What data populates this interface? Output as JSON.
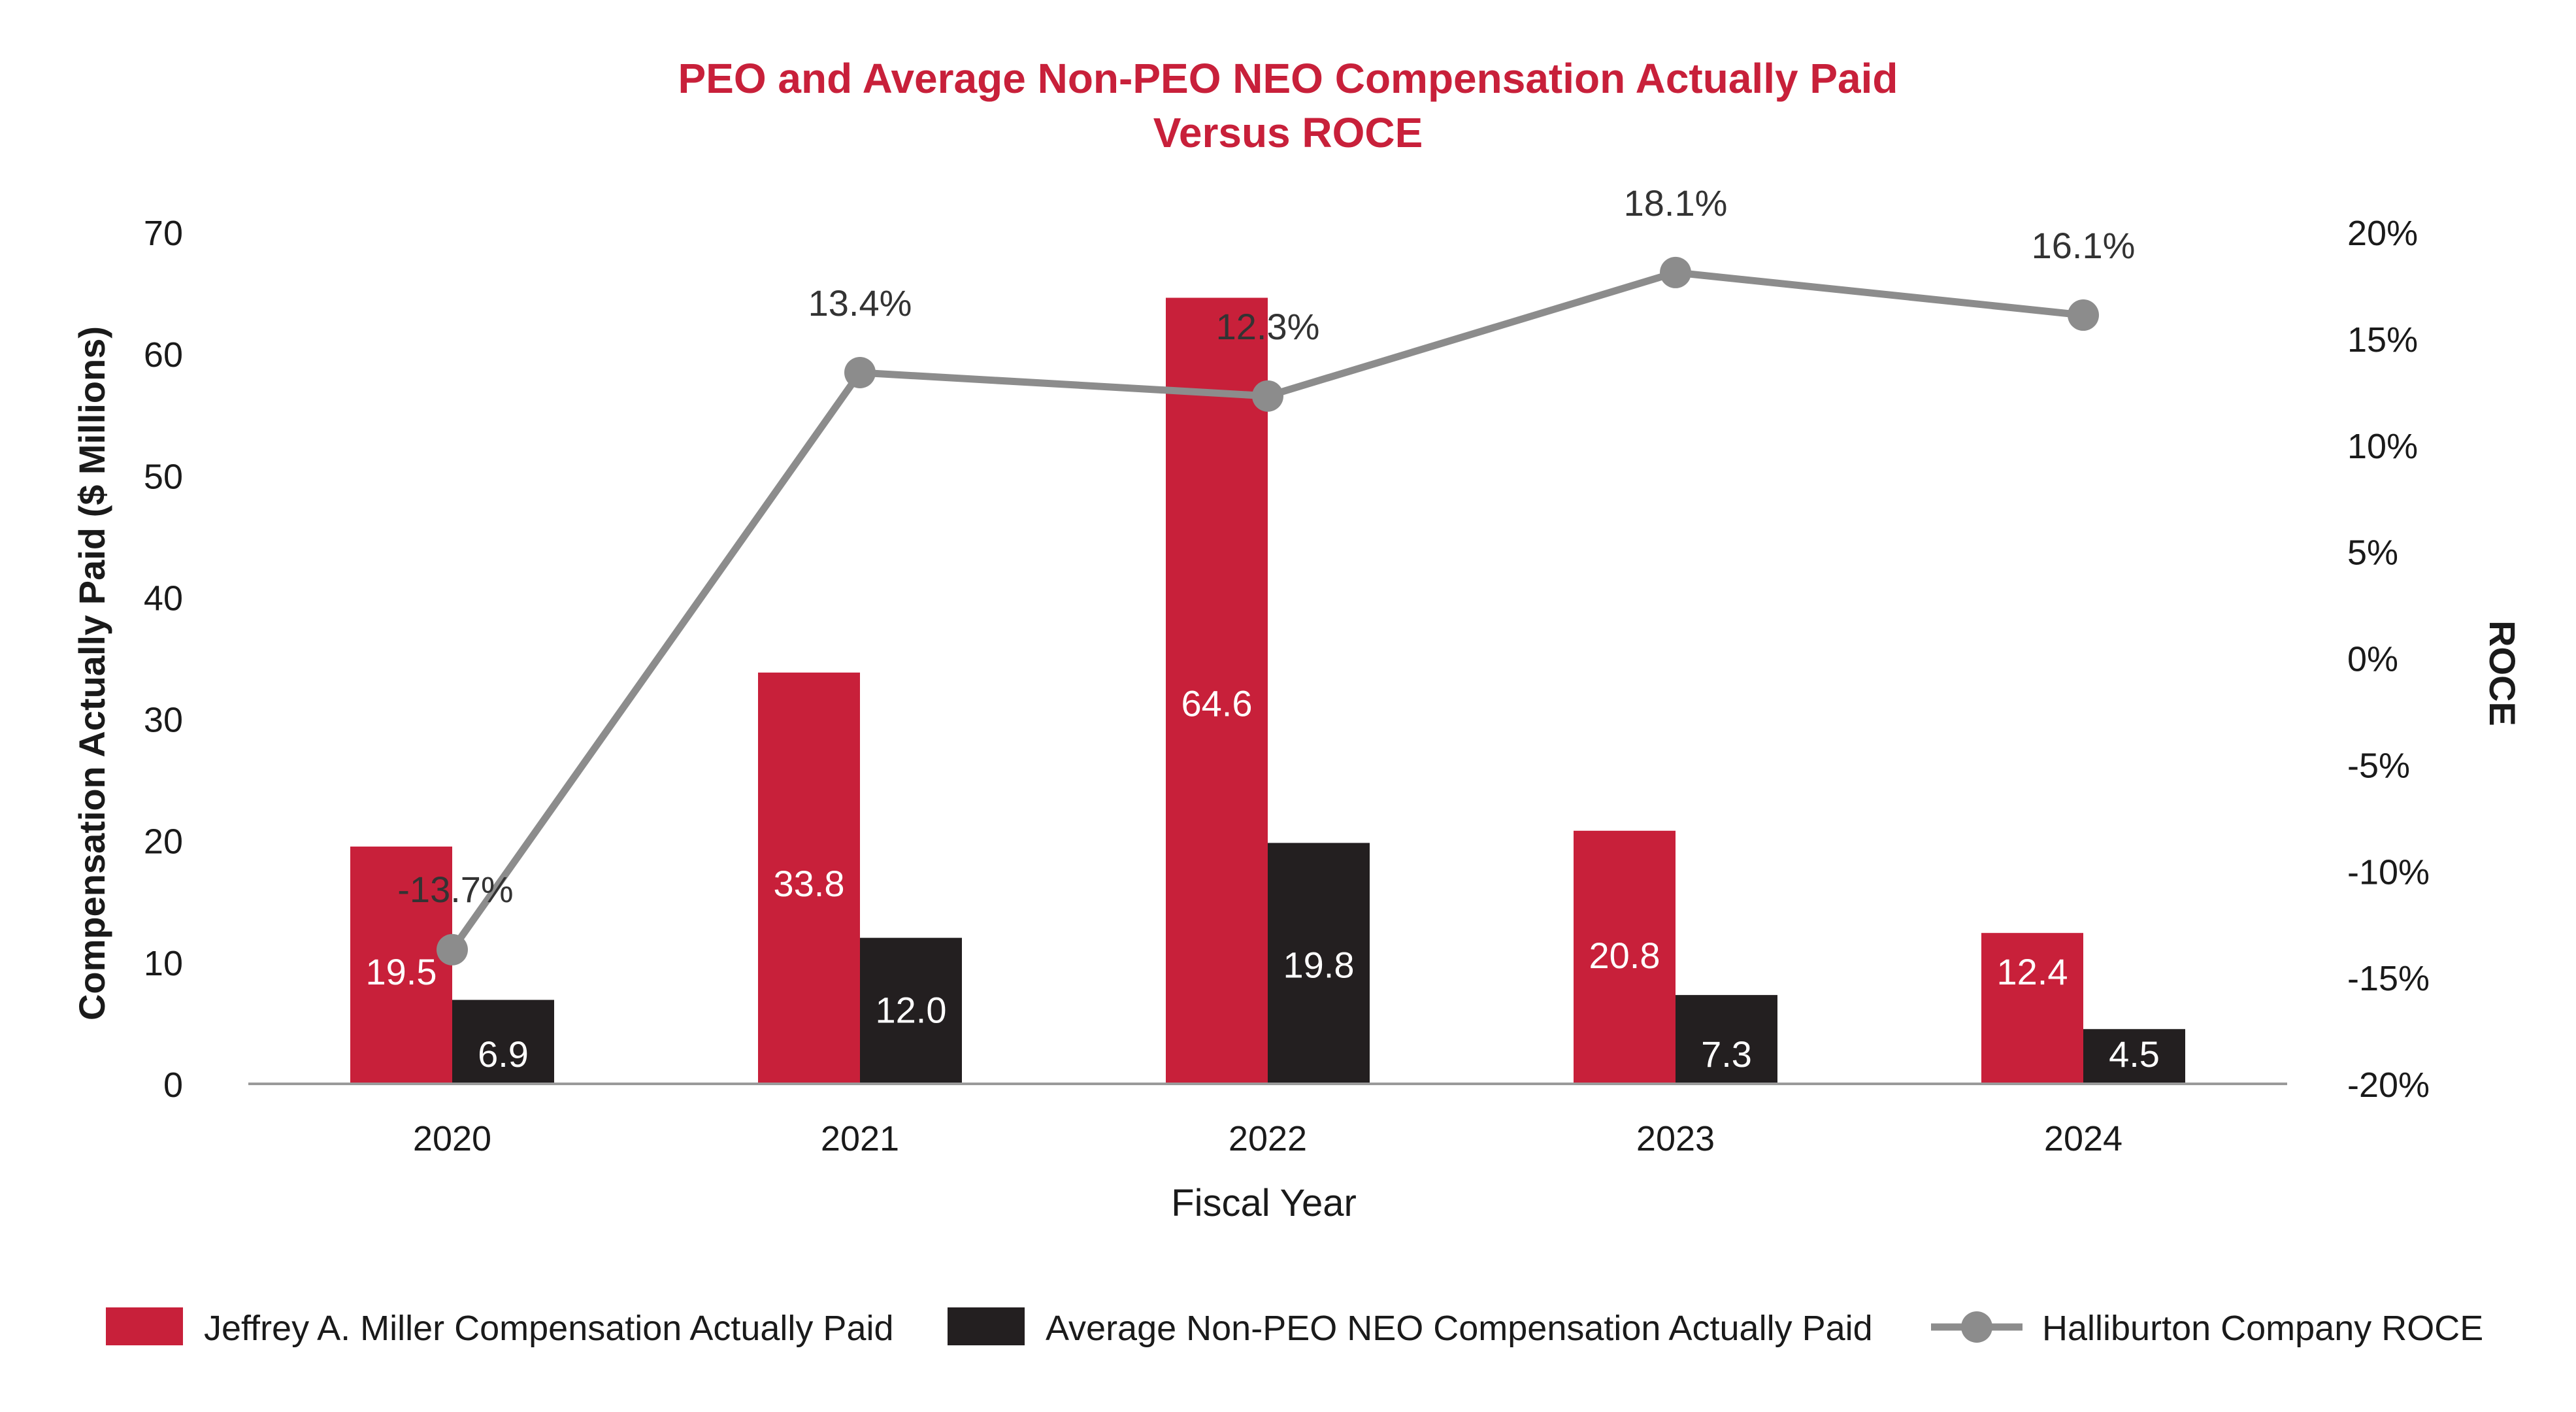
{
  "chart_data": {
    "type": "bar",
    "title_lines": [
      "PEO and Average Non-PEO NEO Compensation Actually Paid",
      "Versus ROCE"
    ],
    "xlabel": "Fiscal Year",
    "ylabel": "Compensation Actually Paid ($ Millions)",
    "y2label": "ROCE",
    "categories": [
      "2020",
      "2021",
      "2022",
      "2023",
      "2024"
    ],
    "ylim": [
      0,
      70
    ],
    "yticks": [
      "0",
      "10",
      "20",
      "30",
      "40",
      "50",
      "60",
      "70"
    ],
    "y2lim": [
      -20,
      20
    ],
    "y2ticks": [
      "-20%",
      "-15%",
      "-10%",
      "-5%",
      "0%",
      "5%",
      "10%",
      "15%",
      "20%"
    ],
    "grid": false,
    "legend_position": "bottom",
    "series": [
      {
        "name": "Jeffrey A. Miller Compensation Actually Paid",
        "type": "bar",
        "axis": "left",
        "color": "#C8203A",
        "values": [
          19.5,
          33.8,
          64.6,
          20.8,
          12.4
        ],
        "labels": [
          "19.5",
          "33.8",
          "64.6",
          "20.8",
          "12.4"
        ]
      },
      {
        "name": "Average Non-PEO NEO Compensation Actually Paid",
        "type": "bar",
        "axis": "left",
        "color": "#231F20",
        "values": [
          6.9,
          12.0,
          19.8,
          7.3,
          4.5
        ],
        "labels": [
          "6.9",
          "12.0",
          "19.8",
          "7.3",
          "4.5"
        ]
      },
      {
        "name": "Halliburton Company ROCE",
        "type": "line",
        "axis": "right",
        "color": "#8C8C8C",
        "values": [
          -13.7,
          13.4,
          12.3,
          18.1,
          16.1
        ],
        "labels": [
          "-13.7%",
          "13.4%",
          "12.3%",
          "18.1%",
          "16.1%"
        ]
      }
    ]
  }
}
